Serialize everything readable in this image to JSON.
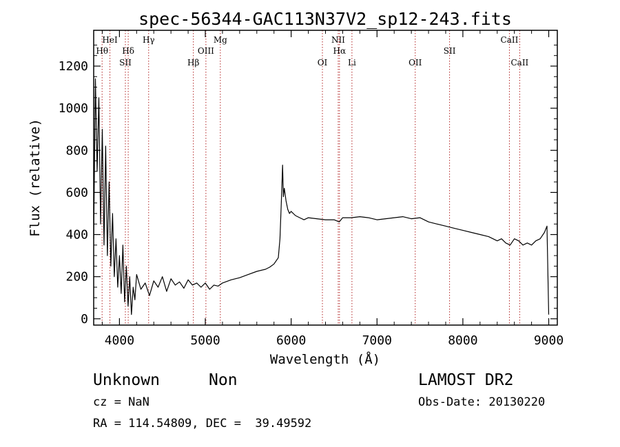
{
  "chart_data": {
    "type": "line",
    "title": "spec-56344-GAC113N37V2_sp12-243.fits",
    "xlabel": "Wavelength (Å)",
    "ylabel": "Flux (relative)",
    "xlim": [
      3700,
      9100
    ],
    "ylim": [
      -30,
      1370
    ],
    "x_ticks": [
      4000,
      5000,
      6000,
      7000,
      8000,
      9000
    ],
    "y_ticks": [
      0,
      200,
      400,
      600,
      800,
      1000,
      1200
    ],
    "grid": false,
    "series": [
      {
        "x": [
          3700,
          3720,
          3740,
          3760,
          3780,
          3800,
          3820,
          3840,
          3860,
          3880,
          3900,
          3920,
          3940,
          3960,
          3980,
          4000,
          4020,
          4040,
          4060,
          4080,
          4100,
          4120,
          4140,
          4160,
          4180,
          4200,
          4250,
          4300,
          4350,
          4400,
          4450,
          4500,
          4550,
          4600,
          4650,
          4700,
          4750,
          4800,
          4850,
          4900,
          4950,
          5000,
          5050,
          5100,
          5150,
          5200,
          5300,
          5400,
          5500,
          5600,
          5700,
          5750,
          5800,
          5850,
          5870,
          5890,
          5900,
          5910,
          5920,
          5940,
          5960,
          5980,
          6000,
          6050,
          6100,
          6150,
          6200,
          6300,
          6400,
          6500,
          6560,
          6600,
          6700,
          6800,
          6900,
          7000,
          7100,
          7200,
          7300,
          7400,
          7500,
          7600,
          7700,
          7800,
          7900,
          8000,
          8100,
          8200,
          8300,
          8400,
          8450,
          8500,
          8550,
          8600,
          8650,
          8700,
          8750,
          8800,
          8850,
          8900,
          8950,
          8980,
          9000
        ],
        "y": [
          380,
          1140,
          700,
          1050,
          450,
          900,
          350,
          820,
          300,
          650,
          250,
          500,
          200,
          380,
          150,
          300,
          120,
          350,
          80,
          250,
          60,
          200,
          20,
          150,
          90,
          210,
          140,
          170,
          110,
          180,
          150,
          200,
          130,
          190,
          160,
          175,
          145,
          185,
          160,
          170,
          150,
          170,
          140,
          160,
          155,
          170,
          185,
          195,
          210,
          225,
          235,
          245,
          260,
          290,
          380,
          600,
          730,
          580,
          620,
          560,
          520,
          500,
          510,
          490,
          480,
          470,
          480,
          475,
          470,
          470,
          460,
          480,
          480,
          485,
          480,
          470,
          475,
          480,
          485,
          475,
          480,
          460,
          450,
          440,
          430,
          420,
          410,
          400,
          390,
          370,
          380,
          360,
          350,
          380,
          370,
          350,
          360,
          350,
          370,
          380,
          410,
          440,
          20
        ]
      }
    ],
    "lines": [
      {
        "label": "Hθ",
        "x": 3798,
        "row": 2
      },
      {
        "label": "HeI",
        "x": 3889,
        "row": 1
      },
      {
        "label": "SII",
        "x": 4069,
        "row": 3
      },
      {
        "label": "Hδ",
        "x": 4102,
        "row": 2
      },
      {
        "label": "Hγ",
        "x": 4340,
        "row": 1
      },
      {
        "label": "Hβ",
        "x": 4861,
        "row": 3
      },
      {
        "label": "OIII",
        "x": 5007,
        "row": 2
      },
      {
        "label": "Mg",
        "x": 5175,
        "row": 1
      },
      {
        "label": "OI",
        "x": 6364,
        "row": 3
      },
      {
        "label": "NII",
        "x": 6548,
        "row": 1
      },
      {
        "label": "Hα",
        "x": 6563,
        "row": 2
      },
      {
        "label": "Li",
        "x": 6708,
        "row": 3
      },
      {
        "label": "OII",
        "x": 7445,
        "row": 3
      },
      {
        "label": "SII",
        "x": 7845,
        "row": 2
      },
      {
        "label": "CaII",
        "x": 8542,
        "row": 1
      },
      {
        "label": "CaII",
        "x": 8662,
        "row": 3
      }
    ]
  },
  "info": {
    "object_class": "Unknown",
    "subclass": "Non",
    "survey": "LAMOST DR2",
    "cz": "cz = NaN",
    "obs_date": "Obs-Date: 20130220",
    "coords": "RA = 114.54809, DEC =  39.49592"
  }
}
